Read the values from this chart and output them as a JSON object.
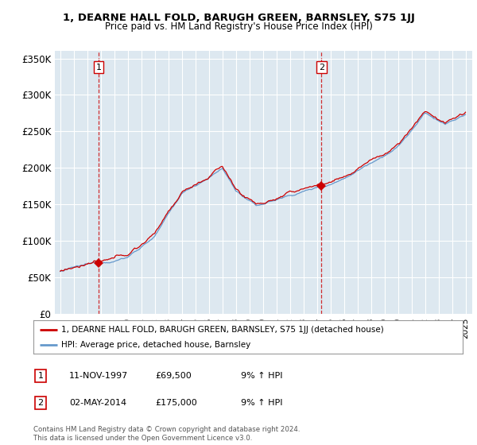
{
  "title": "1, DEARNE HALL FOLD, BARUGH GREEN, BARNSLEY, S75 1JJ",
  "subtitle": "Price paid vs. HM Land Registry's House Price Index (HPI)",
  "ylabel_ticks": [
    "£0",
    "£50K",
    "£100K",
    "£150K",
    "£200K",
    "£250K",
    "£300K",
    "£350K"
  ],
  "ytick_values": [
    0,
    50000,
    100000,
    150000,
    200000,
    250000,
    300000,
    350000
  ],
  "ylim": [
    0,
    360000
  ],
  "sale1_year": 1997.87,
  "sale1_price": 69500,
  "sale2_year": 2014.34,
  "sale2_price": 175000,
  "legend_entries": [
    "1, DEARNE HALL FOLD, BARUGH GREEN, BARNSLEY, S75 1JJ (detached house)",
    "HPI: Average price, detached house, Barnsley"
  ],
  "table_rows": [
    [
      "1",
      "11-NOV-1997",
      "£69,500",
      "9% ↑ HPI"
    ],
    [
      "2",
      "02-MAY-2014",
      "£175,000",
      "9% ↑ HPI"
    ]
  ],
  "footer": "Contains HM Land Registry data © Crown copyright and database right 2024.\nThis data is licensed under the Open Government Licence v3.0.",
  "line_color_property": "#cc0000",
  "line_color_hpi": "#6699cc",
  "chart_bg_color": "#dde8f0",
  "background_color": "#ffffff",
  "grid_color": "#ffffff",
  "dashed_line_color": "#cc0000",
  "label1_box_color": "#cc0000"
}
